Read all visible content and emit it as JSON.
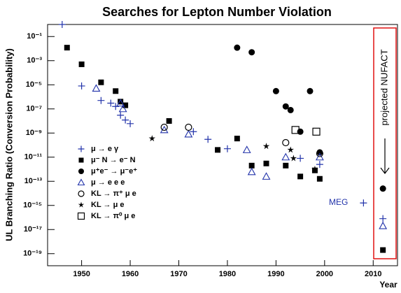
{
  "chart_data": {
    "type": "scatter",
    "title": "Searches for Lepton Number Violation",
    "xlabel": "Year",
    "ylabel": "UL Branching Ratio (Conversion Probability)",
    "log_y": true,
    "xlim": [
      1943,
      2015
    ],
    "ylim": [
      1e-20,
      1
    ],
    "xticks": [
      1950,
      1960,
      1970,
      1980,
      1990,
      2000,
      2010
    ],
    "yticks": [
      {
        "value": 0.1,
        "label": "10⁻¹"
      },
      {
        "value": 0.001,
        "label": "10⁻³"
      },
      {
        "value": 1e-05,
        "label": "10⁻⁵"
      },
      {
        "value": 1e-07,
        "label": "10⁻⁷"
      },
      {
        "value": 1e-09,
        "label": "10⁻⁹"
      },
      {
        "value": 1e-11,
        "label": "10⁻¹¹"
      },
      {
        "value": 1e-13,
        "label": "10⁻¹³"
      },
      {
        "value": 1e-15,
        "label": "10⁻¹⁵"
      },
      {
        "value": 1e-17,
        "label": "10⁻¹⁷"
      },
      {
        "value": 1e-19,
        "label": "10⁻¹⁹"
      }
    ],
    "legend": "left",
    "annotations": [
      {
        "text": "MEG",
        "color": "#2233aa"
      },
      {
        "text": "projected NUFACT",
        "color": "#000000"
      }
    ],
    "series": [
      {
        "name": "μ → e γ",
        "marker": "plus",
        "color": "#2233aa",
        "x": [
          1946,
          1950,
          1954,
          1956,
          1957,
          1958,
          1959,
          1960,
          1973,
          1976,
          1980,
          1995,
          1999,
          2008,
          2012
        ],
        "values": [
          1,
          8e-06,
          5e-07,
          3e-07,
          1.6e-07,
          3e-08,
          1.2e-08,
          6e-09,
          1.3e-09,
          3e-10,
          5e-11,
          8e-12,
          2.5e-12,
          1.6e-15,
          8e-17
        ]
      },
      {
        "name": "μ⁻ N → e⁻ N",
        "marker": "square",
        "color": "#000000",
        "x": [
          1947,
          1950,
          1954,
          1957,
          1958,
          1959,
          1968,
          1978,
          1982,
          1985,
          1988,
          1992,
          1995,
          1998,
          1999,
          2012
        ],
        "values": [
          0.012,
          0.0005,
          1.6e-05,
          3e-06,
          4e-07,
          2e-07,
          1e-08,
          4e-11,
          3.5e-10,
          2e-12,
          3e-12,
          2e-12,
          2.5e-13,
          8e-13,
          1.6e-13,
          2e-19
        ]
      },
      {
        "name": "μ⁺e⁻ → μ⁻e⁺",
        "marker": "circle",
        "color": "#000000",
        "x": [
          1982,
          1985,
          1990,
          1992,
          1993,
          1995,
          1997,
          1999,
          2012
        ],
        "values": [
          0.012,
          0.005,
          3e-06,
          1.6e-07,
          8e-08,
          1.3e-09,
          3e-06,
          2.5e-11,
          2.5e-14
        ]
      },
      {
        "name": "μ → e e e",
        "marker": "triangle",
        "color": "#2233aa",
        "x": [
          1953,
          1958,
          1958.5,
          1967,
          1972,
          1984,
          1985,
          1988,
          1992,
          1999,
          2012
        ],
        "values": [
          5e-06,
          3e-07,
          1e-07,
          1.8e-09,
          8e-10,
          4e-11,
          6e-13,
          2.5e-13,
          1e-11,
          1e-11,
          2e-17
        ]
      },
      {
        "name": "KL → π⁺ μ e",
        "marker": "open-circle",
        "color": "#000000",
        "x": [
          1967,
          1972,
          1992,
          1999
        ],
        "values": [
          3e-09,
          3e-09,
          1.6e-10,
          2e-11
        ]
      },
      {
        "name": "KL → μ e",
        "marker": "star",
        "color": "#000000",
        "x": [
          1964.5,
          1988,
          1993,
          1993.6,
          1998
        ],
        "values": [
          3.5e-10,
          8e-11,
          4e-11,
          8e-12,
          1e-12
        ]
      },
      {
        "name": "KL → π⁰ μ e",
        "marker": "open-square",
        "color": "#000000",
        "x": [
          1994,
          1998.3
        ],
        "values": [
          1.8e-09,
          1.3e-09
        ]
      }
    ]
  }
}
